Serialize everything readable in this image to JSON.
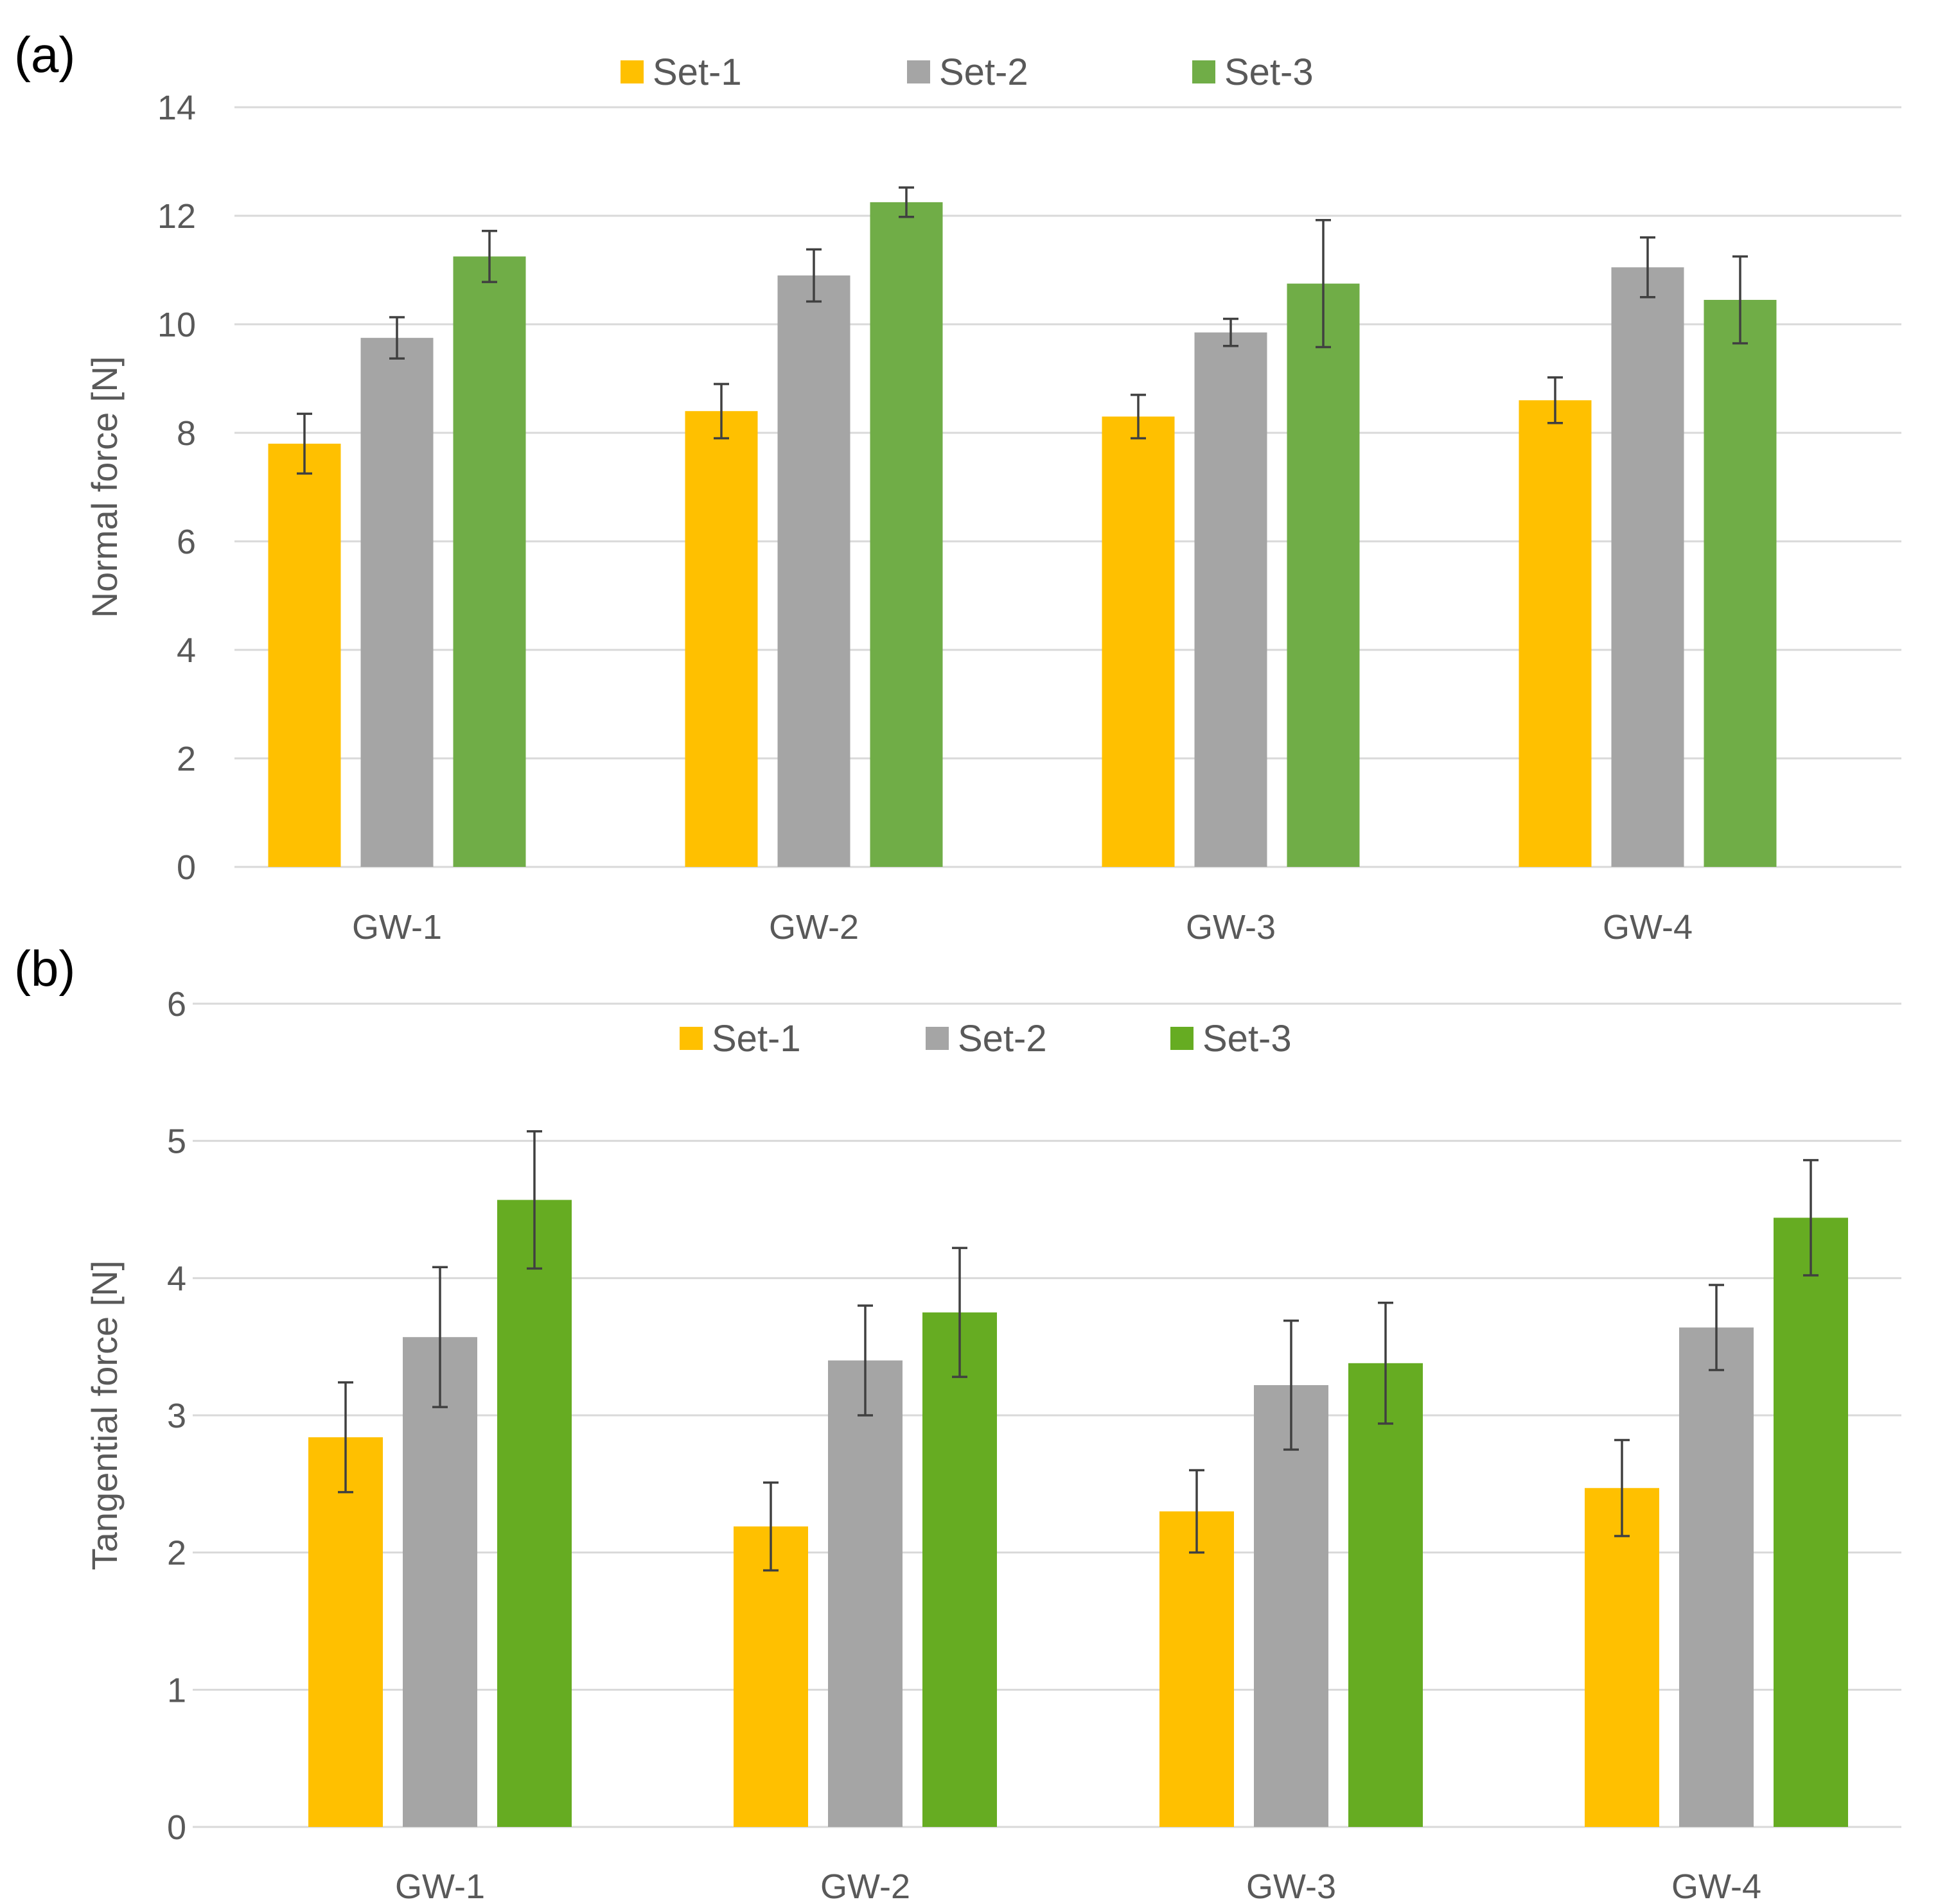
{
  "chart_data": [
    {
      "type": "bar",
      "panel_label": "(a)",
      "title": "",
      "xlabel": "",
      "ylabel": "Normal force [N]",
      "ylim": [
        0,
        14
      ],
      "yticks": [
        "0",
        "2",
        "4",
        "6",
        "8",
        "10",
        "12",
        "14"
      ],
      "grid": true,
      "legend_position": "top-center",
      "categories": [
        "GW-1",
        "GW-2",
        "GW-3",
        "GW-4"
      ],
      "series": [
        {
          "name": "Set-1",
          "color": "#ffc000",
          "values": [
            7.8,
            8.4,
            8.3,
            8.6
          ],
          "errors": [
            0.55,
            0.5,
            0.4,
            0.42
          ]
        },
        {
          "name": "Set-2",
          "color": "#a5a5a5",
          "values": [
            9.75,
            10.9,
            9.85,
            11.05
          ],
          "errors": [
            0.38,
            0.48,
            0.25,
            0.55
          ]
        },
        {
          "name": "Set-3",
          "color": "#70ad47",
          "values": [
            11.25,
            12.25,
            10.75,
            10.45
          ],
          "errors": [
            0.47,
            0.27,
            1.17,
            0.8
          ]
        }
      ]
    },
    {
      "type": "bar",
      "panel_label": "(b)",
      "title": "",
      "xlabel": "",
      "ylabel": "Tangential force [N]",
      "ylim": [
        0,
        6
      ],
      "yticks": [
        "0",
        "1",
        "2",
        "3",
        "4",
        "5",
        "6"
      ],
      "grid": true,
      "legend_position": "top-center",
      "categories": [
        "GW-1",
        "GW-2",
        "GW-3",
        "GW-4"
      ],
      "series": [
        {
          "name": "Set-1",
          "color": "#ffc000",
          "values": [
            2.84,
            2.19,
            2.3,
            2.47
          ],
          "errors": [
            0.4,
            0.32,
            0.3,
            0.35
          ]
        },
        {
          "name": "Set-2",
          "color": "#a5a5a5",
          "values": [
            3.57,
            3.4,
            3.22,
            3.64
          ],
          "errors": [
            0.51,
            0.4,
            0.47,
            0.31
          ]
        },
        {
          "name": "Set-3",
          "color": "#66ac22",
          "values": [
            4.57,
            3.75,
            3.38,
            4.44
          ],
          "errors": [
            0.5,
            0.47,
            0.44,
            0.42
          ]
        }
      ]
    }
  ]
}
